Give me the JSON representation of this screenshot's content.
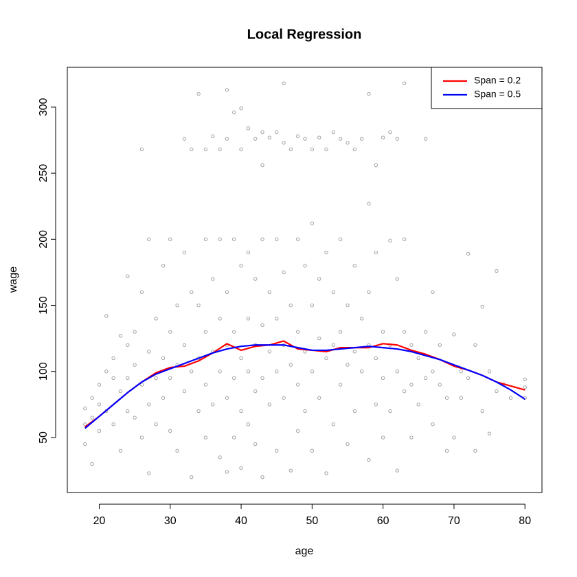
{
  "chart_data": {
    "type": "scatter",
    "title": "Local Regression",
    "x_label": "age",
    "y_label": "wage",
    "xlim": [
      15.5,
      82.4
    ],
    "ylim": [
      8.4,
      330.1
    ],
    "xticks": [
      20,
      30,
      40,
      50,
      60,
      70,
      80
    ],
    "yticks": [
      50,
      100,
      150,
      200,
      250,
      300
    ],
    "legend": "topright",
    "scatter": {
      "color": "#a0a0a0",
      "x": [
        18,
        18,
        18,
        19,
        19,
        19,
        20,
        20,
        20,
        21,
        21,
        21,
        22,
        22,
        22,
        23,
        23,
        23,
        24,
        24,
        24,
        24,
        25,
        25,
        25,
        26,
        26,
        26,
        26,
        27,
        27,
        27,
        27,
        28,
        28,
        28,
        29,
        29,
        29,
        30,
        30,
        30,
        30,
        31,
        31,
        31,
        32,
        32,
        32,
        32,
        33,
        33,
        33,
        33,
        34,
        34,
        34,
        34,
        35,
        35,
        35,
        35,
        35,
        36,
        36,
        36,
        36,
        37,
        37,
        37,
        37,
        37,
        38,
        38,
        38,
        38,
        38,
        38,
        39,
        39,
        39,
        39,
        39,
        40,
        40,
        40,
        40,
        40,
        40,
        41,
        41,
        41,
        41,
        41,
        42,
        42,
        42,
        42,
        42,
        43,
        43,
        43,
        43,
        43,
        43,
        44,
        44,
        44,
        44,
        45,
        45,
        45,
        45,
        45,
        46,
        46,
        46,
        46,
        46,
        47,
        47,
        47,
        47,
        48,
        48,
        48,
        48,
        48,
        49,
        49,
        49,
        49,
        50,
        50,
        50,
        50,
        50,
        51,
        51,
        51,
        51,
        52,
        52,
        52,
        52,
        53,
        53,
        53,
        53,
        54,
        54,
        54,
        54,
        55,
        55,
        55,
        55,
        56,
        56,
        56,
        56,
        57,
        57,
        57,
        58,
        58,
        58,
        58,
        58,
        59,
        59,
        59,
        59,
        60,
        60,
        60,
        60,
        61,
        61,
        61,
        61,
        62,
        62,
        62,
        62,
        63,
        63,
        63,
        63,
        64,
        64,
        64,
        65,
        65,
        66,
        66,
        66,
        67,
        67,
        67,
        68,
        68,
        69,
        69,
        70,
        70,
        71,
        71,
        72,
        72,
        73,
        73,
        74,
        74,
        75,
        75,
        76,
        76,
        77,
        78,
        80,
        80,
        80
      ],
      "y": [
        72,
        60,
        45,
        80,
        30,
        65,
        90,
        55,
        75,
        142,
        100,
        70,
        95,
        60,
        110,
        85,
        127,
        40,
        172,
        95,
        70,
        120,
        105,
        130,
        65,
        268,
        160,
        90,
        50,
        200,
        115,
        75,
        23,
        140,
        95,
        60,
        180,
        110,
        80,
        200,
        130,
        95,
        55,
        150,
        105,
        40,
        276,
        190,
        120,
        85,
        268,
        160,
        100,
        20,
        310,
        150,
        110,
        70,
        268,
        200,
        130,
        90,
        50,
        278,
        170,
        115,
        75,
        268,
        200,
        140,
        100,
        35,
        313,
        276,
        160,
        120,
        80,
        24,
        296,
        200,
        130,
        95,
        50,
        299,
        268,
        180,
        110,
        70,
        27,
        284,
        190,
        140,
        100,
        60,
        276,
        170,
        120,
        85,
        45,
        256,
        281,
        200,
        135,
        95,
        20,
        277,
        160,
        115,
        75,
        281,
        200,
        140,
        100,
        40,
        318,
        273,
        175,
        120,
        80,
        268,
        150,
        105,
        25,
        278,
        200,
        130,
        90,
        55,
        276,
        180,
        115,
        70,
        212,
        268,
        150,
        100,
        40,
        277,
        170,
        125,
        80,
        268,
        190,
        110,
        23,
        281,
        160,
        120,
        60,
        276,
        200,
        130,
        90,
        273,
        150,
        105,
        45,
        268,
        180,
        115,
        70,
        276,
        140,
        100,
        310,
        227,
        160,
        120,
        33,
        256,
        190,
        110,
        75,
        277,
        130,
        95,
        50,
        281,
        199,
        120,
        70,
        276,
        170,
        100,
        25,
        318,
        200,
        130,
        85,
        120,
        90,
        50,
        110,
        75,
        276,
        130,
        95,
        160,
        100,
        60,
        90,
        120,
        80,
        40,
        128,
        50,
        100,
        80,
        189,
        95,
        120,
        40,
        149,
        70,
        100,
        53,
        176,
        85,
        90,
        80,
        94,
        88,
        80
      ]
    },
    "x": [
      18,
      20,
      22,
      24,
      26,
      28,
      30,
      32,
      34,
      36,
      38,
      40,
      42,
      44,
      46,
      48,
      50,
      52,
      54,
      56,
      58,
      60,
      62,
      64,
      66,
      68,
      70,
      72,
      74,
      76,
      78,
      80
    ],
    "series": [
      {
        "name": "Span = 0.2",
        "color": "#ff0000",
        "values": [
          58,
          66,
          75,
          84,
          92,
          99,
          103,
          104,
          108,
          114,
          121,
          116,
          119,
          120,
          123,
          117,
          116,
          115,
          118,
          118,
          118,
          121,
          120,
          116,
          113,
          109,
          104,
          101,
          97,
          92,
          89,
          86
        ]
      },
      {
        "name": "Span = 0.5",
        "color": "#0000ff",
        "values": [
          57,
          66,
          75,
          84,
          92,
          98,
          102,
          106,
          110,
          114,
          117,
          119,
          120,
          120,
          120,
          118,
          116,
          116,
          117,
          118,
          119,
          118,
          117,
          115,
          112,
          109,
          105,
          101,
          97,
          92,
          86,
          79
        ]
      }
    ]
  }
}
